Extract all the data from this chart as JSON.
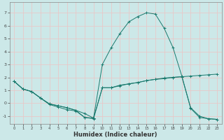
{
  "xlabel": "Humidex (Indice chaleur)",
  "xlim": [
    -0.5,
    23.5
  ],
  "ylim": [
    -1.6,
    7.8
  ],
  "xticks": [
    0,
    1,
    2,
    3,
    4,
    5,
    6,
    7,
    8,
    9,
    10,
    11,
    12,
    13,
    14,
    15,
    16,
    17,
    18,
    19,
    20,
    21,
    22,
    23
  ],
  "yticks": [
    -1,
    0,
    1,
    2,
    3,
    4,
    5,
    6,
    7
  ],
  "bg_color": "#cce8e8",
  "line_color": "#1a7a6e",
  "grid_color": "#e8c8c8",
  "series1_x": [
    0,
    1,
    2,
    3,
    4,
    5,
    6,
    7,
    8,
    9,
    10,
    11,
    12,
    13,
    14,
    15,
    16,
    17,
    18,
    19,
    20,
    21,
    22,
    23
  ],
  "series1_y": [
    1.7,
    1.1,
    0.9,
    0.4,
    -0.1,
    -0.3,
    -0.5,
    -0.6,
    -1.1,
    -1.2,
    1.2,
    1.2,
    1.4,
    1.5,
    1.6,
    1.75,
    1.85,
    1.9,
    2.0,
    2.05,
    2.1,
    2.15,
    2.2,
    2.25
  ],
  "series2_x": [
    0,
    1,
    2,
    3,
    4,
    5,
    6,
    7,
    8,
    9,
    10,
    11,
    12,
    13,
    14,
    15,
    16,
    17,
    18,
    19,
    20,
    21,
    22,
    23
  ],
  "series2_y": [
    1.7,
    1.1,
    0.9,
    0.4,
    -0.05,
    -0.2,
    -0.35,
    -0.55,
    -1.1,
    -1.15,
    3.0,
    4.3,
    5.4,
    6.3,
    6.7,
    7.0,
    6.9,
    5.8,
    4.3,
    2.1,
    -0.4,
    -1.1,
    -1.2,
    -1.25
  ],
  "series3_x": [
    0,
    1,
    2,
    3,
    4,
    5,
    6,
    7,
    8,
    9,
    10,
    11,
    12,
    13,
    14,
    15,
    16,
    17,
    18,
    19,
    20,
    21,
    22,
    23
  ],
  "series3_y": [
    1.7,
    1.1,
    0.9,
    0.4,
    -0.05,
    -0.2,
    -0.35,
    -0.55,
    -0.8,
    -1.15,
    1.2,
    1.2,
    1.35,
    1.5,
    1.6,
    1.75,
    1.85,
    1.95,
    2.0,
    2.05,
    -0.35,
    -1.0,
    -1.2,
    -1.25
  ],
  "tick_fontsize": 4.5,
  "xlabel_fontsize": 6.0
}
